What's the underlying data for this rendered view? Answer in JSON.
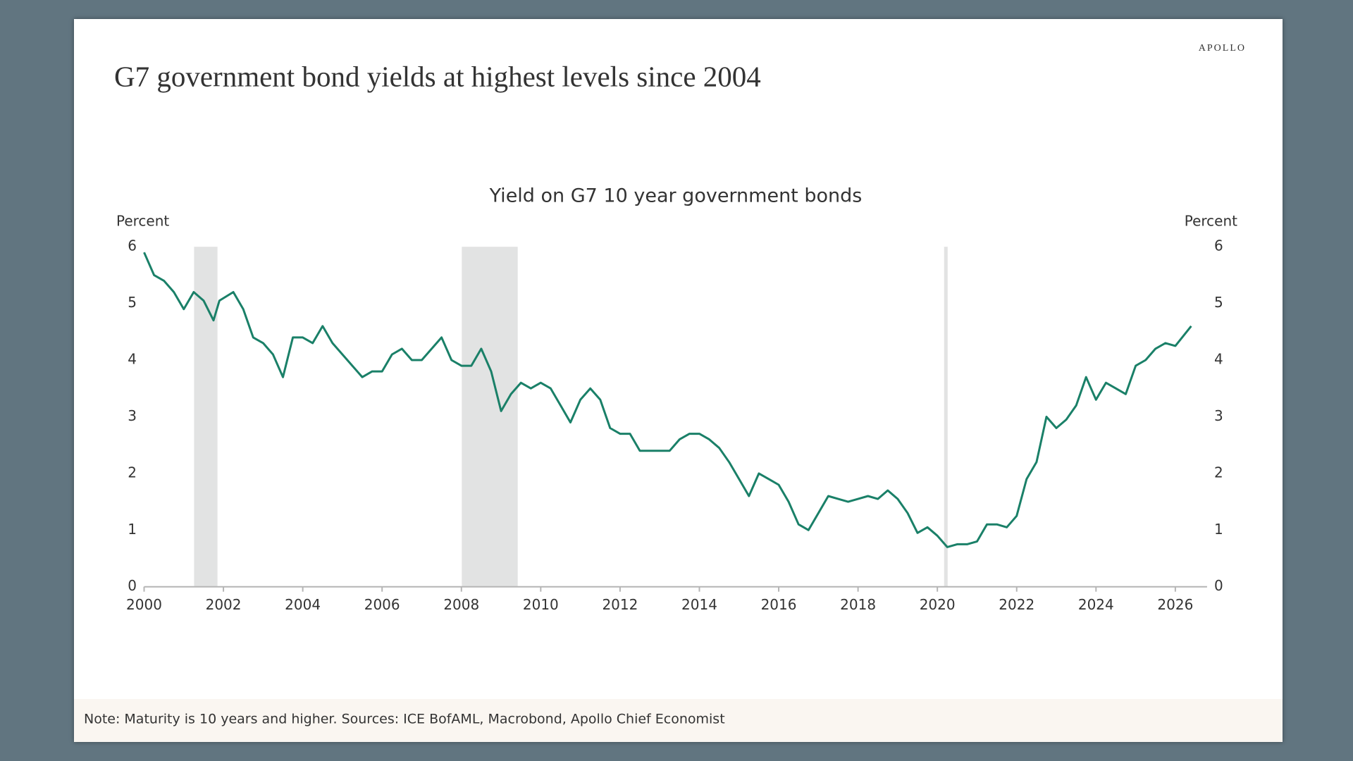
{
  "brand": "APOLLO",
  "note": "Note: Maturity is 10 years and higher. Sources: ICE BofAML, Macrobond, Apollo Chief Economist",
  "chart_data": {
    "type": "line",
    "title": "G7 government bond yields at highest levels since 2004",
    "subtitle": "Yield on G7 10 year government bonds",
    "y_label": "Percent",
    "y2_label": "Percent",
    "color": "#1a8068",
    "shade_color": "#e2e3e3",
    "shaded_periods": [
      [
        2001.26,
        2001.85
      ],
      [
        2008.01,
        2009.42
      ],
      [
        2020.17,
        2020.26
      ]
    ],
    "x": [
      2000.0,
      2000.25,
      2000.5,
      2000.75,
      2001.0,
      2001.25,
      2001.5,
      2001.75,
      2001.9,
      2002.25,
      2002.5,
      2002.75,
      2003.0,
      2003.25,
      2003.5,
      2003.75,
      2004.0,
      2004.25,
      2004.5,
      2004.75,
      2005.0,
      2005.25,
      2005.5,
      2005.75,
      2006.0,
      2006.25,
      2006.5,
      2006.75,
      2007.0,
      2007.25,
      2007.5,
      2007.75,
      2008.0,
      2008.25,
      2008.5,
      2008.75,
      2009.0,
      2009.25,
      2009.5,
      2009.75,
      2010.0,
      2010.25,
      2010.5,
      2010.75,
      2011.0,
      2011.25,
      2011.5,
      2011.75,
      2012.0,
      2012.25,
      2012.5,
      2012.75,
      2013.0,
      2013.25,
      2013.5,
      2013.75,
      2014.0,
      2014.25,
      2014.5,
      2014.75,
      2015.0,
      2015.25,
      2015.5,
      2015.75,
      2016.0,
      2016.25,
      2016.5,
      2016.75,
      2017.0,
      2017.25,
      2017.5,
      2017.75,
      2018.0,
      2018.25,
      2018.5,
      2018.75,
      2019.0,
      2019.25,
      2019.5,
      2019.75,
      2020.0,
      2020.25,
      2020.5,
      2020.75,
      2021.0,
      2021.25,
      2021.5,
      2021.75,
      2022.0,
      2022.25,
      2022.5,
      2022.75,
      2023.0,
      2023.25,
      2023.5,
      2023.75,
      2024.0,
      2024.25,
      2024.5,
      2024.75,
      2025.0,
      2025.25,
      2025.5,
      2025.75,
      2026.0,
      2026.4
    ],
    "values": [
      5.9,
      5.5,
      5.4,
      5.2,
      4.9,
      5.2,
      5.05,
      4.7,
      5.05,
      5.2,
      4.9,
      4.4,
      4.3,
      4.1,
      3.7,
      4.4,
      4.4,
      4.3,
      4.6,
      4.3,
      4.1,
      3.9,
      3.7,
      3.8,
      3.8,
      4.1,
      4.2,
      4.0,
      4.0,
      4.2,
      4.4,
      4.0,
      3.9,
      3.9,
      4.2,
      3.8,
      3.1,
      3.4,
      3.6,
      3.5,
      3.6,
      3.5,
      3.2,
      2.9,
      3.3,
      3.5,
      3.3,
      2.8,
      2.7,
      2.7,
      2.4,
      2.4,
      2.4,
      2.4,
      2.6,
      2.7,
      2.7,
      2.6,
      2.45,
      2.2,
      1.9,
      1.6,
      2.0,
      1.9,
      1.8,
      1.5,
      1.1,
      1.0,
      1.3,
      1.6,
      1.55,
      1.5,
      1.55,
      1.6,
      1.55,
      1.7,
      1.55,
      1.3,
      0.95,
      1.05,
      0.9,
      0.7,
      0.75,
      0.75,
      0.8,
      1.1,
      1.1,
      1.05,
      1.25,
      1.9,
      2.2,
      3.0,
      2.8,
      2.95,
      3.2,
      3.7,
      3.3,
      3.6,
      3.5,
      3.4,
      3.9,
      4.0,
      4.2,
      4.3,
      4.25,
      4.6
    ],
    "xlim": [
      2000,
      2026.8
    ],
    "xticks": [
      2000,
      2002,
      2004,
      2006,
      2008,
      2010,
      2012,
      2014,
      2016,
      2018,
      2020,
      2022,
      2024,
      2026
    ],
    "ylim": [
      0,
      6
    ],
    "yticks": [
      0,
      1,
      2,
      3,
      4,
      5,
      6
    ],
    "y2lim": [
      0,
      6
    ],
    "y2ticks": [
      0,
      1,
      2,
      3,
      4,
      5,
      6
    ]
  }
}
